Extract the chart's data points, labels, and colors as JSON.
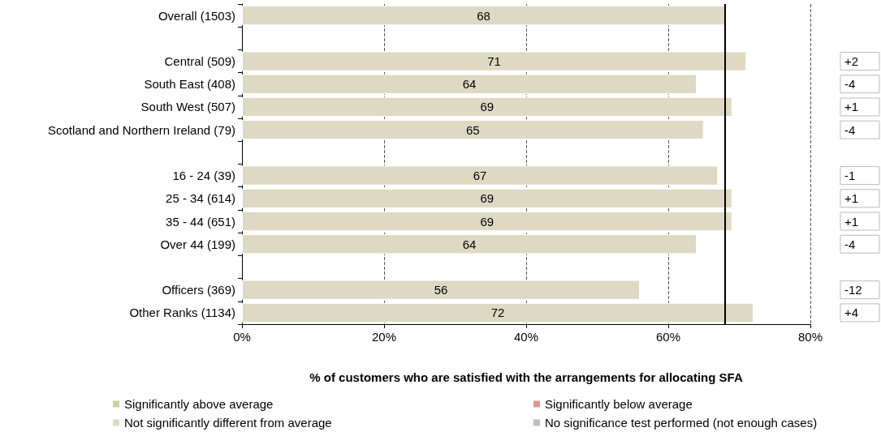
{
  "chart_data": {
    "type": "bar",
    "orientation": "horizontal",
    "stacked": true,
    "categories": [
      "Overall (1503)",
      null,
      "Central (509)",
      "South East (408)",
      "South West (507)",
      "Scotland and Northern Ireland (79)",
      null,
      "16 - 24 (39)",
      "25 - 34 (614)",
      "35 - 44 (651)",
      "Over 44 (199)",
      null,
      "Officers (369)",
      "Other Ranks (1134)"
    ],
    "series": [
      {
        "name": "Significantly above average",
        "color": "#c3d69b",
        "values": [
          null,
          null,
          null,
          null,
          null,
          null,
          null,
          null,
          null,
          null,
          null,
          null,
          null,
          null
        ]
      },
      {
        "name": "Significantly below average",
        "color": "#d99694",
        "values": [
          null,
          null,
          null,
          null,
          null,
          null,
          null,
          null,
          null,
          null,
          null,
          null,
          null,
          null
        ]
      },
      {
        "name": "Not significantly different from average",
        "color": "#ddd9c3",
        "values": [
          68,
          null,
          71,
          64,
          69,
          65,
          null,
          67,
          69,
          69,
          64,
          null,
          56,
          72
        ]
      },
      {
        "name": "No significance test performed (not enough cases)",
        "color": "#bfbfbf",
        "values": [
          null,
          null,
          null,
          null,
          null,
          null,
          null,
          null,
          null,
          null,
          null,
          null,
          null,
          null
        ]
      }
    ],
    "data_labels": true,
    "xlabel": "% of customers who are satisfied with the arrangements for allocating SFA",
    "xlim": [
      0,
      80
    ],
    "xticks": [
      {
        "value": 0,
        "label": "0%"
      },
      {
        "value": 20,
        "label": "20%"
      },
      {
        "value": 40,
        "label": "40%"
      },
      {
        "value": 60,
        "label": "60%"
      },
      {
        "value": 80,
        "label": "80%"
      }
    ],
    "grid": "x",
    "legend": "bottom",
    "ref_lines": [
      {
        "axis": "x",
        "value": 68,
        "color": "#000000"
      }
    ],
    "annotations": [
      "+2",
      "-4",
      "+1",
      "-4",
      "-1",
      "+1",
      "+1",
      "-4",
      "-12",
      "+4"
    ]
  }
}
